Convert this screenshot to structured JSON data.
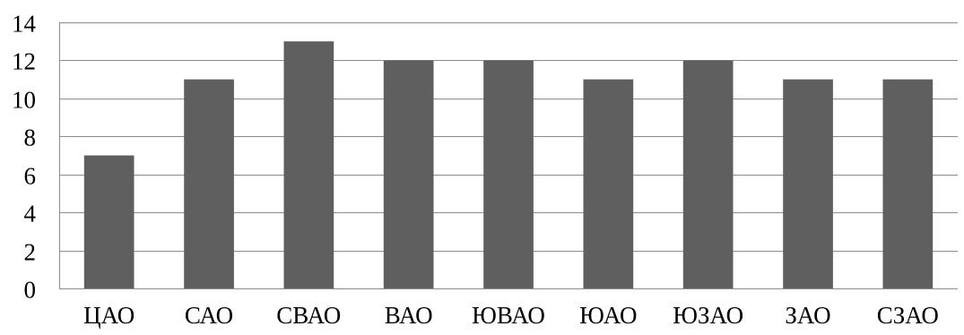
{
  "chart_data": {
    "type": "bar",
    "title": "",
    "xlabel": "",
    "ylabel": "",
    "categories": [
      "ЦАО",
      "САО",
      "СВАО",
      "ВАО",
      "ЮВАО",
      "ЮАО",
      "ЮЗАО",
      "ЗАО",
      "СЗАО"
    ],
    "values": [
      7,
      11,
      13,
      12,
      12,
      11,
      12,
      11,
      11
    ],
    "ylim": [
      0,
      14
    ],
    "yticks": [
      0,
      2,
      4,
      6,
      8,
      10,
      12,
      14
    ],
    "grid": true,
    "legend": "none",
    "colors": {
      "bar": "#5f5f5f",
      "grid": "#8c8c8c",
      "axis": "#8c8c8c",
      "text": "#000000"
    }
  }
}
